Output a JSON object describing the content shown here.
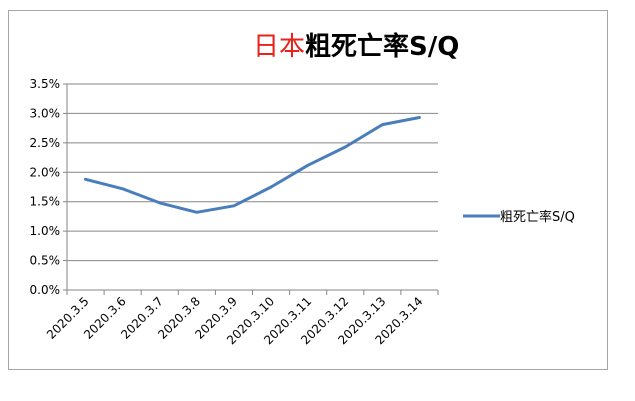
{
  "chart_data": {
    "type": "line",
    "title_part1": "日本",
    "title_part2": "粗死亡率S/Q",
    "categories": [
      "2020.3.5",
      "2020.3.6",
      "2020.3.7",
      "2020.3.8",
      "2020.3.9",
      "2020.3.10",
      "2020.3.11",
      "2020.3.12",
      "2020.3.13",
      "2020.3.14"
    ],
    "series": [
      {
        "name": "粗死亡率S/Q",
        "color": "#4a7ebb",
        "values": [
          0.0188,
          0.0172,
          0.0148,
          0.0132,
          0.0143,
          0.0175,
          0.0212,
          0.0243,
          0.0281,
          0.0293
        ]
      }
    ],
    "y_ticks": [
      "0.0%",
      "0.5%",
      "1.0%",
      "1.5%",
      "2.0%",
      "2.5%",
      "3.0%",
      "3.5%"
    ],
    "ylim": [
      0,
      0.035
    ],
    "grid": true,
    "legend_position": "right",
    "gridline_color": "#868686"
  }
}
